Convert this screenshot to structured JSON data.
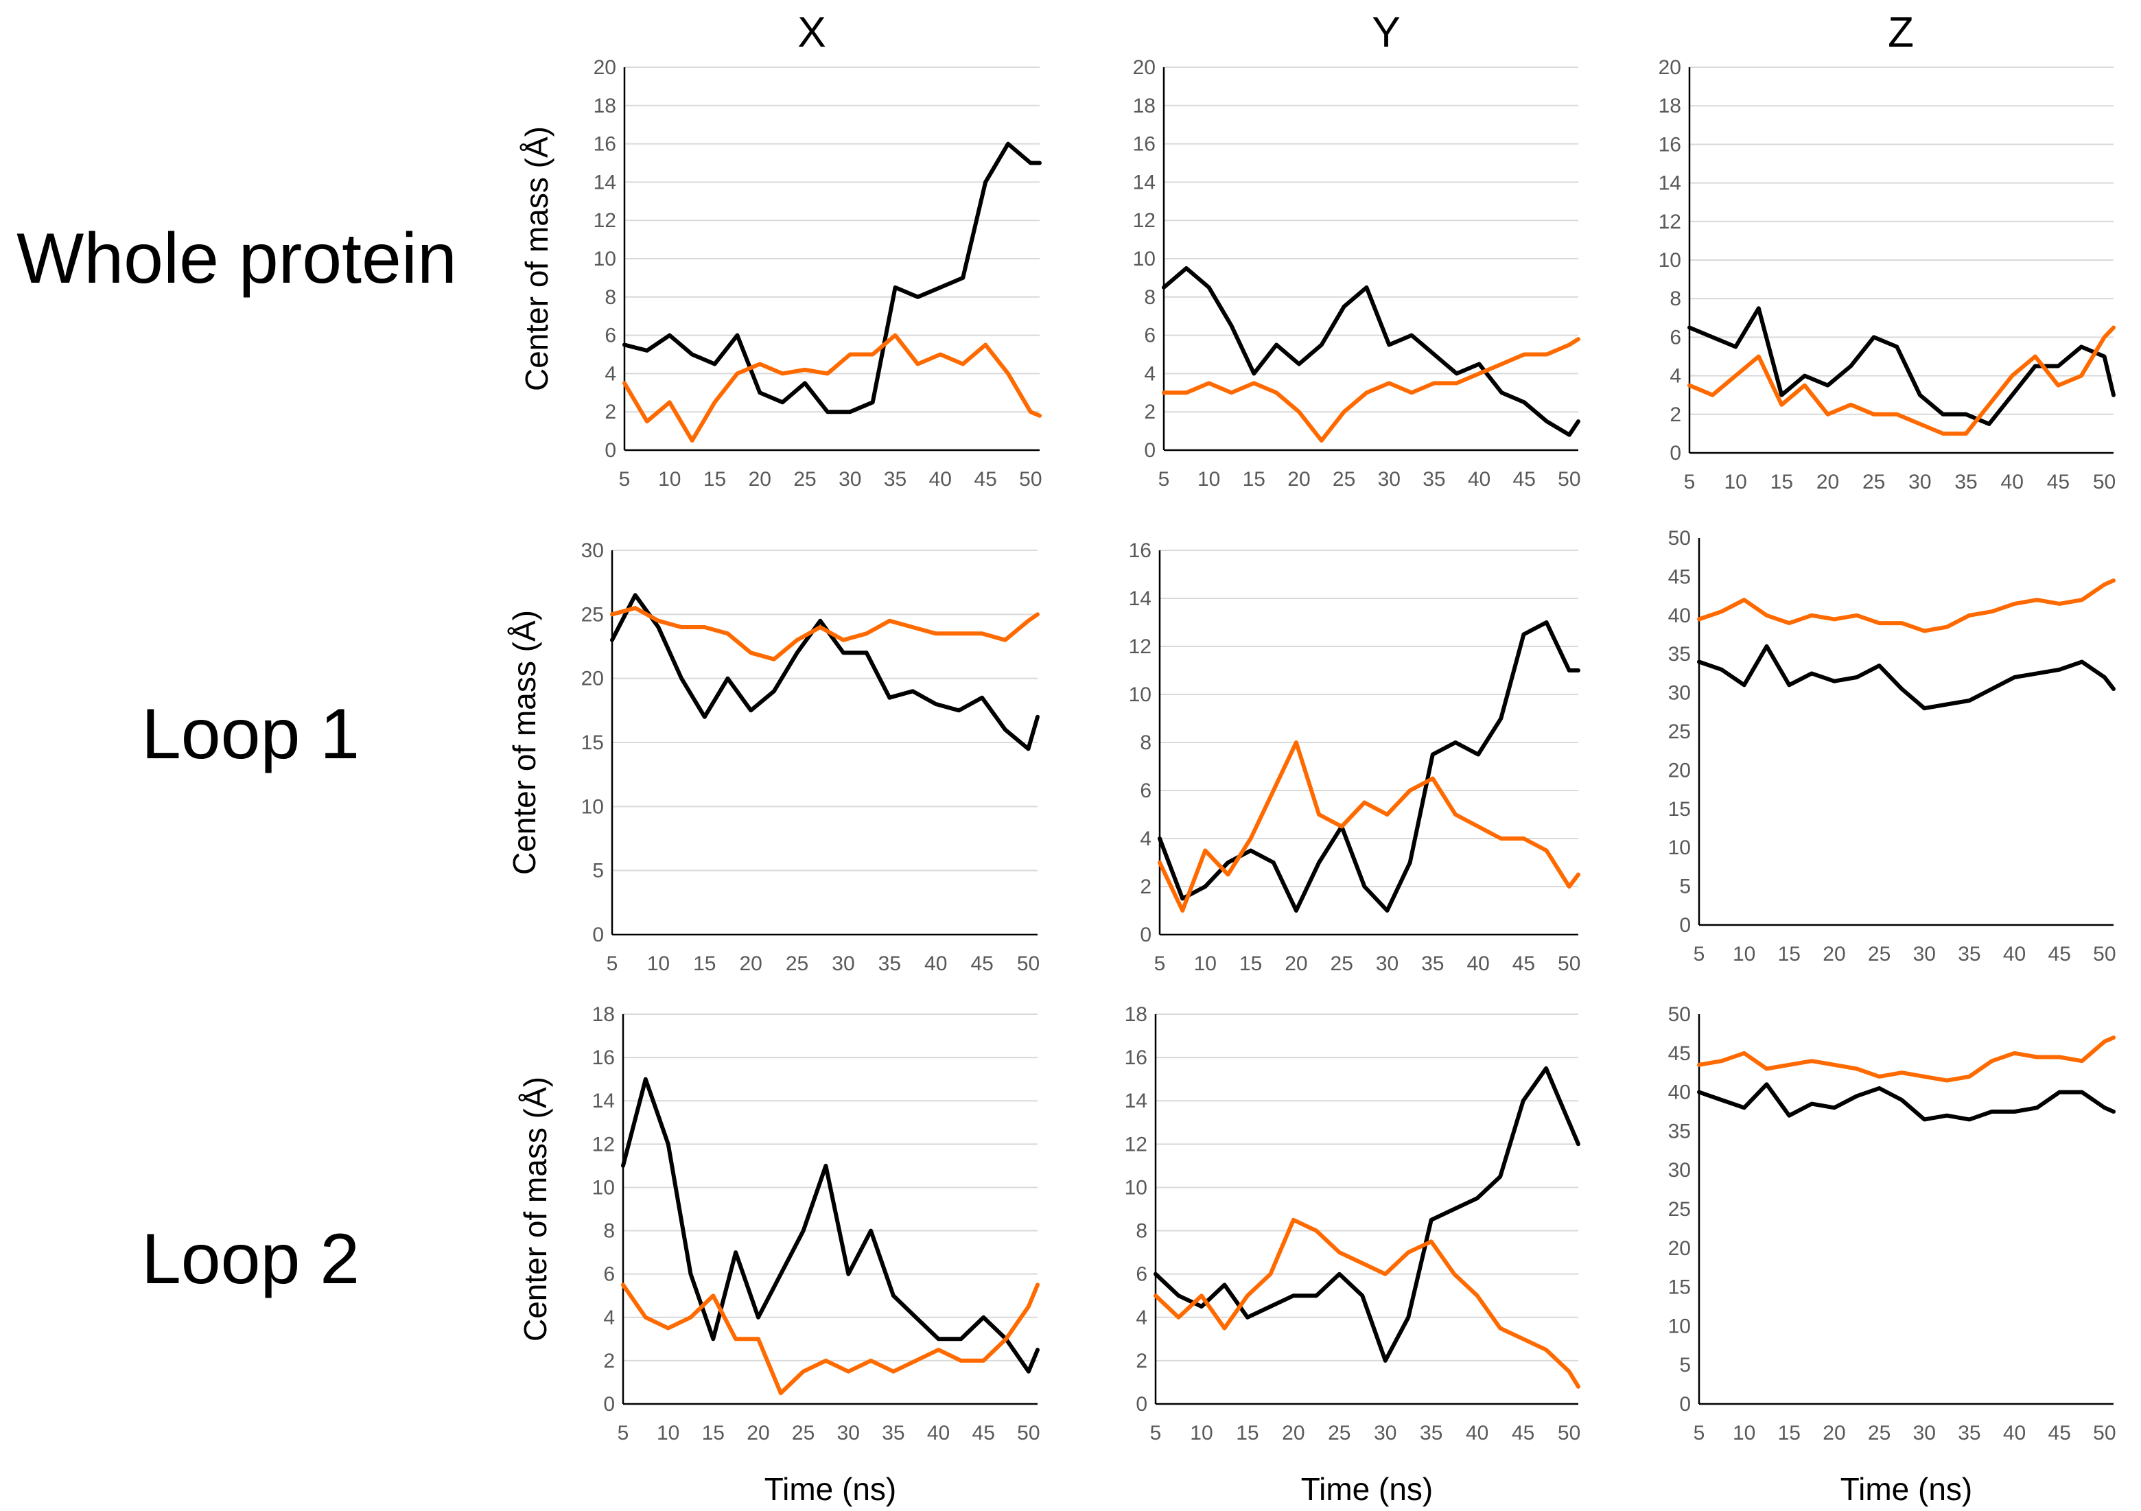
{
  "figure": {
    "column_headers": [
      "X",
      "Y",
      "Z"
    ],
    "row_headers": [
      "Whole protein",
      "Loop 1",
      "Loop 2"
    ],
    "ylabel": "Center of mass (Å)",
    "xlabel": "Time (ns)",
    "colors": {
      "series_black": "#000000",
      "series_orange": "#ff6a00",
      "grid": "#d9d9d9",
      "tick_text": "#595959"
    }
  },
  "chart_data": [
    {
      "type": "line",
      "row": "Whole protein",
      "column": "X",
      "xlabel": "",
      "ylabel": "Center of mass (Å)",
      "xlim": [
        5,
        51
      ],
      "ylim": [
        0,
        20
      ],
      "yticks": [
        0,
        2,
        4,
        6,
        8,
        10,
        12,
        14,
        16,
        18,
        20
      ],
      "xticks": [
        5,
        10,
        15,
        20,
        25,
        30,
        35,
        40,
        45,
        50
      ],
      "grid": "horizontal",
      "series": [
        {
          "color": "#000000",
          "x": [
            5,
            7.5,
            10,
            12.5,
            15,
            17.5,
            20,
            22.5,
            25,
            27.5,
            30,
            32.5,
            35,
            37.5,
            40,
            42.5,
            45,
            47.5,
            50,
            51
          ],
          "values": [
            5.5,
            5.2,
            6,
            5,
            4.5,
            6,
            3,
            2.5,
            3.5,
            2,
            2,
            2.5,
            8.5,
            8,
            8.5,
            9,
            14,
            16,
            15,
            15
          ]
        },
        {
          "color": "#ff6a00",
          "x": [
            5,
            7.5,
            10,
            12.5,
            15,
            17.5,
            20,
            22.5,
            25,
            27.5,
            30,
            32.5,
            35,
            37.5,
            40,
            42.5,
            45,
            47.5,
            50,
            51
          ],
          "values": [
            3.5,
            1.5,
            2.5,
            0.5,
            2.5,
            4,
            4.5,
            4,
            4.2,
            4,
            5,
            5,
            6,
            4.5,
            5,
            4.5,
            5.5,
            4,
            2,
            1.8
          ]
        }
      ]
    },
    {
      "type": "line",
      "row": "Whole protein",
      "column": "Y",
      "xlabel": "",
      "ylabel": "",
      "xlim": [
        5,
        51
      ],
      "ylim": [
        0,
        20
      ],
      "yticks": [
        0,
        2,
        4,
        6,
        8,
        10,
        12,
        14,
        16,
        18,
        20
      ],
      "xticks": [
        5,
        10,
        15,
        20,
        25,
        30,
        35,
        40,
        45,
        50
      ],
      "grid": "horizontal",
      "series": [
        {
          "color": "#000000",
          "x": [
            5,
            7.5,
            10,
            12.5,
            15,
            17.5,
            20,
            22.5,
            25,
            27.5,
            30,
            32.5,
            35,
            37.5,
            40,
            42.5,
            45,
            47.5,
            50,
            51
          ],
          "values": [
            8.5,
            9.5,
            8.5,
            6.5,
            4,
            5.5,
            4.5,
            5.5,
            7.5,
            8.5,
            5.5,
            6,
            5,
            4,
            4.5,
            3,
            2.5,
            1.5,
            0.8,
            1.5
          ]
        },
        {
          "color": "#ff6a00",
          "x": [
            5,
            7.5,
            10,
            12.5,
            15,
            17.5,
            20,
            22.5,
            25,
            27.5,
            30,
            32.5,
            35,
            37.5,
            40,
            42.5,
            45,
            47.5,
            50,
            51
          ],
          "values": [
            3,
            3,
            3.5,
            3,
            3.5,
            3,
            2,
            0.5,
            2,
            3,
            3.5,
            3,
            3.5,
            3.5,
            4,
            4.5,
            5,
            5,
            5.5,
            5.8
          ]
        }
      ]
    },
    {
      "type": "line",
      "row": "Whole protein",
      "column": "Z",
      "xlabel": "",
      "ylabel": "",
      "xlim": [
        5,
        51
      ],
      "ylim": [
        0,
        20
      ],
      "yticks": [
        0,
        2,
        4,
        6,
        8,
        10,
        12,
        14,
        16,
        18,
        20
      ],
      "xticks": [
        5,
        10,
        15,
        20,
        25,
        30,
        35,
        40,
        45,
        50
      ],
      "grid": "horizontal",
      "series": [
        {
          "color": "#000000",
          "x": [
            5,
            7.5,
            10,
            12.5,
            15,
            17.5,
            20,
            22.5,
            25,
            27.5,
            30,
            32.5,
            35,
            37.5,
            40,
            42.5,
            45,
            47.5,
            50,
            51
          ],
          "values": [
            6.5,
            6,
            5.5,
            7.5,
            3,
            4,
            3.5,
            4.5,
            6,
            5.5,
            3,
            2,
            2,
            1.5,
            3,
            4.5,
            4.5,
            5.5,
            5,
            3
          ]
        },
        {
          "color": "#ff6a00",
          "x": [
            5,
            7.5,
            10,
            12.5,
            15,
            17.5,
            20,
            22.5,
            25,
            27.5,
            30,
            32.5,
            35,
            37.5,
            40,
            42.5,
            45,
            47.5,
            50,
            51
          ],
          "values": [
            3.5,
            3,
            4,
            5,
            2.5,
            3.5,
            2,
            2.5,
            2,
            2,
            1.5,
            1,
            1,
            2.5,
            4,
            5,
            3.5,
            4,
            6,
            6.5
          ]
        }
      ]
    },
    {
      "type": "line",
      "row": "Loop 1",
      "column": "X",
      "xlabel": "",
      "ylabel": "Center of mass (Å)",
      "xlim": [
        5,
        51
      ],
      "ylim": [
        0,
        30
      ],
      "yticks": [
        0,
        5,
        10,
        15,
        20,
        25,
        30
      ],
      "xticks": [
        5,
        10,
        15,
        20,
        25,
        30,
        35,
        40,
        45,
        50
      ],
      "grid": "horizontal",
      "series": [
        {
          "color": "#000000",
          "x": [
            5,
            7.5,
            10,
            12.5,
            15,
            17.5,
            20,
            22.5,
            25,
            27.5,
            30,
            32.5,
            35,
            37.5,
            40,
            42.5,
            45,
            47.5,
            50,
            51
          ],
          "values": [
            23,
            26.5,
            24,
            20,
            17,
            20,
            17.5,
            19,
            22,
            24.5,
            22,
            22,
            18.5,
            19,
            18,
            17.5,
            18.5,
            16,
            14.5,
            17
          ]
        },
        {
          "color": "#ff6a00",
          "x": [
            5,
            7.5,
            10,
            12.5,
            15,
            17.5,
            20,
            22.5,
            25,
            27.5,
            30,
            32.5,
            35,
            37.5,
            40,
            42.5,
            45,
            47.5,
            50,
            51
          ],
          "values": [
            25,
            25.5,
            24.5,
            24,
            24,
            23.5,
            22,
            21.5,
            23,
            24,
            23,
            23.5,
            24.5,
            24,
            23.5,
            23.5,
            23.5,
            23,
            24.5,
            25
          ]
        }
      ]
    },
    {
      "type": "line",
      "row": "Loop 1",
      "column": "Y",
      "xlabel": "",
      "ylabel": "",
      "xlim": [
        5,
        51
      ],
      "ylim": [
        0,
        16
      ],
      "yticks": [
        0,
        2,
        4,
        6,
        8,
        10,
        12,
        14,
        16
      ],
      "xticks": [
        5,
        10,
        15,
        20,
        25,
        30,
        35,
        40,
        45,
        50
      ],
      "grid": "horizontal",
      "series": [
        {
          "color": "#000000",
          "x": [
            5,
            7.5,
            10,
            12.5,
            15,
            17.5,
            20,
            22.5,
            25,
            27.5,
            30,
            32.5,
            35,
            37.5,
            40,
            42.5,
            45,
            47.5,
            50,
            51
          ],
          "values": [
            4,
            1.5,
            2,
            3,
            3.5,
            3,
            1,
            3,
            4.5,
            2,
            1,
            3,
            7.5,
            8,
            7.5,
            9,
            12.5,
            13,
            11,
            11
          ]
        },
        {
          "color": "#ff6a00",
          "x": [
            5,
            7.5,
            10,
            12.5,
            15,
            17.5,
            20,
            22.5,
            25,
            27.5,
            30,
            32.5,
            35,
            37.5,
            40,
            42.5,
            45,
            47.5,
            50,
            51
          ],
          "values": [
            3,
            1,
            3.5,
            2.5,
            4,
            6,
            8,
            5,
            4.5,
            5.5,
            5,
            6,
            6.5,
            5,
            4.5,
            4,
            4,
            3.5,
            2,
            2.5
          ]
        }
      ]
    },
    {
      "type": "line",
      "row": "Loop 1",
      "column": "Z",
      "xlabel": "",
      "ylabel": "",
      "xlim": [
        5,
        51
      ],
      "ylim": [
        0,
        50
      ],
      "yticks": [
        0,
        5,
        10,
        15,
        20,
        25,
        30,
        35,
        40,
        45,
        50
      ],
      "xticks": [
        5,
        10,
        15,
        20,
        25,
        30,
        35,
        40,
        45,
        50
      ],
      "grid": "none",
      "series": [
        {
          "color": "#000000",
          "x": [
            5,
            7.5,
            10,
            12.5,
            15,
            17.5,
            20,
            22.5,
            25,
            27.5,
            30,
            32.5,
            35,
            37.5,
            40,
            42.5,
            45,
            47.5,
            50,
            51
          ],
          "values": [
            34,
            33,
            31,
            36,
            31,
            32.5,
            31.5,
            32,
            33.5,
            30.5,
            28,
            28.5,
            29,
            30.5,
            32,
            32.5,
            33,
            34,
            32,
            30.5
          ]
        },
        {
          "color": "#ff6a00",
          "x": [
            5,
            7.5,
            10,
            12.5,
            15,
            17.5,
            20,
            22.5,
            25,
            27.5,
            30,
            32.5,
            35,
            37.5,
            40,
            42.5,
            45,
            47.5,
            50,
            51
          ],
          "values": [
            39.5,
            40.5,
            42,
            40,
            39,
            40,
            39.5,
            40,
            39,
            39,
            38,
            38.5,
            40,
            40.5,
            41.5,
            42,
            41.5,
            42,
            44,
            44.5
          ]
        }
      ]
    },
    {
      "type": "line",
      "row": "Loop 2",
      "column": "X",
      "xlabel": "Time (ns)",
      "ylabel": "Center of mass (Å)",
      "xlim": [
        5,
        51
      ],
      "ylim": [
        0,
        18
      ],
      "yticks": [
        0,
        2,
        4,
        6,
        8,
        10,
        12,
        14,
        16,
        18
      ],
      "xticks": [
        5,
        10,
        15,
        20,
        25,
        30,
        35,
        40,
        45,
        50
      ],
      "grid": "horizontal",
      "series": [
        {
          "color": "#000000",
          "x": [
            5,
            7.5,
            10,
            12.5,
            15,
            17.5,
            20,
            22.5,
            25,
            27.5,
            30,
            32.5,
            35,
            37.5,
            40,
            42.5,
            45,
            47.5,
            50,
            51
          ],
          "values": [
            11,
            15,
            12,
            6,
            3,
            7,
            4,
            6,
            8,
            11,
            6,
            8,
            5,
            4,
            3,
            3,
            4,
            3,
            1.5,
            2.5
          ]
        },
        {
          "color": "#ff6a00",
          "x": [
            5,
            7.5,
            10,
            12.5,
            15,
            17.5,
            20,
            22.5,
            25,
            27.5,
            30,
            32.5,
            35,
            37.5,
            40,
            42.5,
            45,
            47.5,
            50,
            51
          ],
          "values": [
            5.5,
            4,
            3.5,
            4,
            5,
            3,
            3,
            0.5,
            1.5,
            2,
            1.5,
            2,
            1.5,
            2,
            2.5,
            2,
            2,
            3,
            4.5,
            5.5
          ]
        }
      ]
    },
    {
      "type": "line",
      "row": "Loop 2",
      "column": "Y",
      "xlabel": "Time (ns)",
      "ylabel": "",
      "xlim": [
        5,
        51
      ],
      "ylim": [
        0,
        18
      ],
      "yticks": [
        0,
        2,
        4,
        6,
        8,
        10,
        12,
        14,
        16,
        18
      ],
      "xticks": [
        5,
        10,
        15,
        20,
        25,
        30,
        35,
        40,
        45,
        50
      ],
      "grid": "horizontal",
      "series": [
        {
          "color": "#000000",
          "x": [
            5,
            7.5,
            10,
            12.5,
            15,
            17.5,
            20,
            22.5,
            25,
            27.5,
            30,
            32.5,
            35,
            37.5,
            40,
            42.5,
            45,
            47.5,
            50,
            51
          ],
          "values": [
            6,
            5,
            4.5,
            5.5,
            4,
            4.5,
            5,
            5,
            6,
            5,
            2,
            4,
            8.5,
            9,
            9.5,
            10.5,
            14,
            15.5,
            13,
            12
          ]
        },
        {
          "color": "#ff6a00",
          "x": [
            5,
            7.5,
            10,
            12.5,
            15,
            17.5,
            20,
            22.5,
            25,
            27.5,
            30,
            32.5,
            35,
            37.5,
            40,
            42.5,
            45,
            47.5,
            50,
            51
          ],
          "values": [
            5,
            4,
            5,
            3.5,
            5,
            6,
            8.5,
            8,
            7,
            6.5,
            6,
            7,
            7.5,
            6,
            5,
            3.5,
            3,
            2.5,
            1.5,
            0.8
          ]
        }
      ]
    },
    {
      "type": "line",
      "row": "Loop 2",
      "column": "Z",
      "xlabel": "Time (ns)",
      "ylabel": "",
      "xlim": [
        5,
        51
      ],
      "ylim": [
        0,
        50
      ],
      "yticks": [
        0,
        5,
        10,
        15,
        20,
        25,
        30,
        35,
        40,
        45,
        50
      ],
      "xticks": [
        5,
        10,
        15,
        20,
        25,
        30,
        35,
        40,
        45,
        50
      ],
      "grid": "none",
      "series": [
        {
          "color": "#000000",
          "x": [
            5,
            7.5,
            10,
            12.5,
            15,
            17.5,
            20,
            22.5,
            25,
            27.5,
            30,
            32.5,
            35,
            37.5,
            40,
            42.5,
            45,
            47.5,
            50,
            51
          ],
          "values": [
            40,
            39,
            38,
            41,
            37,
            38.5,
            38,
            39.5,
            40.5,
            39,
            36.5,
            37,
            36.5,
            37.5,
            37.5,
            38,
            40,
            40,
            38,
            37.5
          ]
        },
        {
          "color": "#ff6a00",
          "x": [
            5,
            7.5,
            10,
            12.5,
            15,
            17.5,
            20,
            22.5,
            25,
            27.5,
            30,
            32.5,
            35,
            37.5,
            40,
            42.5,
            45,
            47.5,
            50,
            51
          ],
          "values": [
            43.5,
            44,
            45,
            43,
            43.5,
            44,
            43.5,
            43,
            42,
            42.5,
            42,
            41.5,
            42,
            44,
            45,
            44.5,
            44.5,
            44,
            46.5,
            47
          ]
        }
      ]
    }
  ]
}
